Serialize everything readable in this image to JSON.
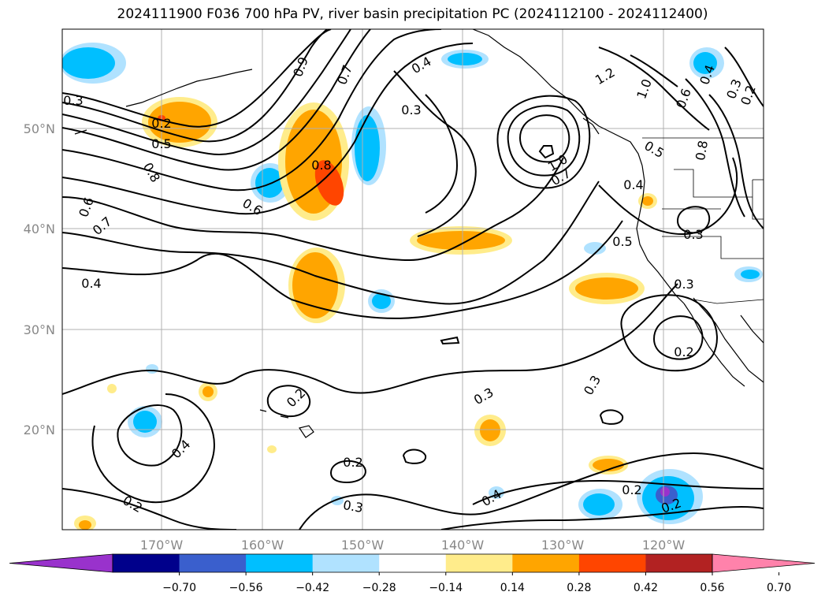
{
  "title": "2024111900 F036 700 hPa PV, river basin precipitation PC (2024112100 - 2024112400)",
  "lat_labels": [
    "50°N",
    "40°N",
    "30°N",
    "20°N"
  ],
  "lon_labels": [
    "170°W",
    "160°W",
    "150°W",
    "140°W",
    "130°W",
    "120°W"
  ],
  "colorbar": {
    "colors": [
      "#9932cc",
      "#00008b",
      "#3a5fcd",
      "#00bfff",
      "#b0e2ff",
      "#ffffff",
      "#ffec8b",
      "#ffa500",
      "#ff4500",
      "#b22222",
      "#ff82ab"
    ],
    "tick_labels": [
      "−0.70",
      "−0.56",
      "−0.42",
      "−0.28",
      "−0.14",
      "0.14",
      "0.28",
      "0.42",
      "0.56",
      "0.70"
    ]
  },
  "contour_labels": [
    "0.3",
    "0.2",
    "0.5",
    "0.8",
    "0.6",
    "0.7",
    "0.4",
    "0.6",
    "0.9",
    "0.7",
    "0.4",
    "0.3",
    "1.2",
    "1.0",
    "0.4",
    "0.3",
    "0.2",
    "0.6",
    "0.8",
    "1.0",
    "0.7",
    "0.5",
    "0.4",
    "0.3",
    "0.5",
    "0.3",
    "0.2",
    "0.2",
    "0.3",
    "0.3",
    "0.4",
    "0.2",
    "0.2",
    "0.3",
    "0.4",
    "0.2",
    "0.2",
    "0.8"
  ]
}
